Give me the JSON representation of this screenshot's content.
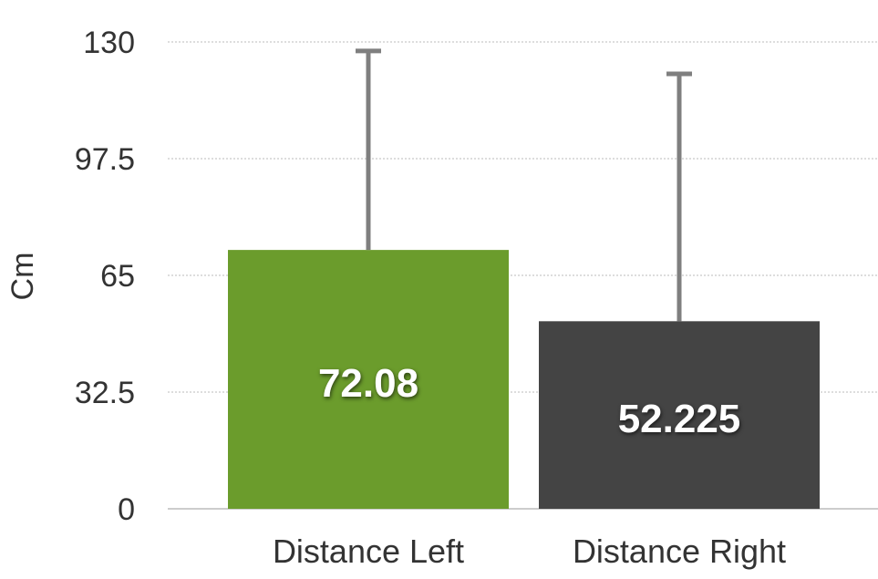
{
  "chart_data": {
    "type": "bar",
    "title": "",
    "xlabel": "",
    "ylabel": "Cm",
    "ylim": [
      0,
      130
    ],
    "yticks": [
      "0",
      "32.5",
      "65",
      "97.5",
      "130"
    ],
    "grid": true,
    "categories": [
      "Distance Left",
      "Distance Right"
    ],
    "values": [
      72.08,
      52.225
    ],
    "value_labels": [
      "72.08",
      "52.225"
    ],
    "error_upper": [
      127.5,
      121.1
    ],
    "colors": [
      "#6b9c2c",
      "#444444"
    ],
    "error_color": "#7f7f7f",
    "grid_color": "#bbbbbb",
    "axis_color": "#bbbbbb"
  }
}
